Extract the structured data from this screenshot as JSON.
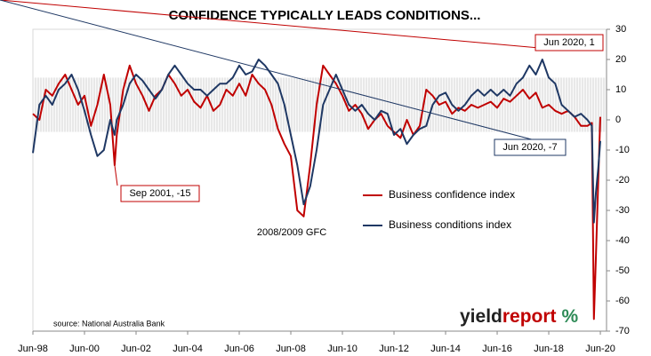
{
  "chart_data": {
    "type": "line",
    "title": "CONFIDENCE TYPICALLY LEADS CONDITIONS...",
    "x": [
      1998.5,
      1998.75,
      1999,
      1999.25,
      1999.5,
      1999.75,
      2000,
      2000.25,
      2000.5,
      2000.75,
      2001,
      2001.25,
      2001.5,
      2001.67,
      2001.75,
      2002,
      2002.25,
      2002.5,
      2002.75,
      2003,
      2003.25,
      2003.5,
      2003.75,
      2004,
      2004.25,
      2004.5,
      2004.75,
      2005,
      2005.25,
      2005.5,
      2005.75,
      2006,
      2006.25,
      2006.5,
      2006.75,
      2007,
      2007.25,
      2007.5,
      2007.75,
      2008,
      2008.25,
      2008.5,
      2008.75,
      2009,
      2009.25,
      2009.5,
      2009.75,
      2010,
      2010.25,
      2010.5,
      2010.75,
      2011,
      2011.25,
      2011.5,
      2011.75,
      2012,
      2012.25,
      2012.5,
      2012.75,
      2013,
      2013.25,
      2013.5,
      2013.75,
      2014,
      2014.25,
      2014.5,
      2014.75,
      2015,
      2015.25,
      2015.5,
      2015.75,
      2016,
      2016.25,
      2016.5,
      2016.75,
      2017,
      2017.25,
      2017.5,
      2017.75,
      2018,
      2018.25,
      2018.5,
      2018.75,
      2019,
      2019.25,
      2019.5,
      2019.75,
      2020,
      2020.17,
      2020.25,
      2020.33,
      2020.42,
      2020.5
    ],
    "series": [
      {
        "name": "Business confidence index",
        "color": "#c00000",
        "values": [
          2,
          0,
          10,
          8,
          12,
          15,
          10,
          5,
          8,
          -2,
          5,
          15,
          5,
          -15,
          -5,
          10,
          18,
          12,
          8,
          3,
          8,
          10,
          15,
          12,
          8,
          10,
          6,
          4,
          8,
          3,
          5,
          10,
          8,
          12,
          8,
          15,
          12,
          10,
          5,
          -3,
          -8,
          -12,
          -30,
          -32,
          -15,
          5,
          18,
          15,
          12,
          8,
          3,
          5,
          2,
          -3,
          0,
          2,
          -2,
          -4,
          -6,
          0,
          -5,
          -2,
          10,
          8,
          5,
          6,
          2,
          4,
          3,
          5,
          4,
          5,
          6,
          4,
          7,
          6,
          8,
          10,
          7,
          9,
          4,
          5,
          3,
          2,
          3,
          1,
          -2,
          -2,
          -1,
          -66,
          -45,
          -20,
          1
        ]
      },
      {
        "name": "Business conditions index",
        "color": "#1f3864",
        "values": [
          -11,
          5,
          8,
          5,
          10,
          12,
          15,
          10,
          3,
          -5,
          -12,
          -10,
          0,
          -5,
          0,
          5,
          12,
          15,
          13,
          10,
          7,
          10,
          15,
          18,
          15,
          12,
          10,
          10,
          8,
          10,
          12,
          12,
          14,
          18,
          15,
          16,
          20,
          18,
          15,
          12,
          5,
          -5,
          -15,
          -28,
          -22,
          -10,
          5,
          10,
          15,
          10,
          5,
          3,
          5,
          2,
          0,
          3,
          2,
          -5,
          -3,
          -8,
          -5,
          -3,
          -2,
          5,
          8,
          9,
          5,
          3,
          5,
          8,
          10,
          8,
          10,
          8,
          10,
          8,
          12,
          14,
          18,
          15,
          20,
          14,
          12,
          5,
          3,
          1,
          2,
          0,
          -2,
          -34,
          -24,
          -16,
          -7
        ]
      }
    ],
    "xlim": [
      1998.5,
      2020.74
    ],
    "xticks": [
      {
        "value": 1998.5,
        "label": "Jun-98"
      },
      {
        "value": 2000.5,
        "label": "Jun-00"
      },
      {
        "value": 2002.5,
        "label": "Jun-02"
      },
      {
        "value": 2004.5,
        "label": "Jun-04"
      },
      {
        "value": 2006.5,
        "label": "Jun-06"
      },
      {
        "value": 2008.5,
        "label": "Jun-08"
      },
      {
        "value": 2010.5,
        "label": "Jun-10"
      },
      {
        "value": 2012.5,
        "label": "Jun-12"
      },
      {
        "value": 2014.5,
        "label": "Jun-14"
      },
      {
        "value": 2016.5,
        "label": "Jun-16"
      },
      {
        "value": 2018.5,
        "label": "Jun-18"
      },
      {
        "value": 2020.5,
        "label": "Jun-20"
      }
    ],
    "ylim": [
      -70,
      30
    ],
    "yticks": [
      -70,
      -60,
      -50,
      -40,
      -30,
      -20,
      -10,
      0,
      10,
      20,
      30
    ],
    "yaxis_side": "right",
    "grid": false,
    "shaded_range": [
      -4,
      14
    ],
    "annotations": [
      {
        "text": "Sep 2001, -15",
        "series": 0,
        "index": 13,
        "color": "#c00000"
      },
      {
        "text": "Jun 2020, 1",
        "series": 0,
        "index": 93,
        "color": "#c00000"
      },
      {
        "text": "Jun 2020, -7",
        "series": 1,
        "index": 93,
        "color": "#1f3864"
      },
      {
        "text": "2008/2009 GFC"
      }
    ],
    "source": "source: National Australia Bank",
    "logo": [
      "yield",
      "report",
      "%"
    ]
  }
}
